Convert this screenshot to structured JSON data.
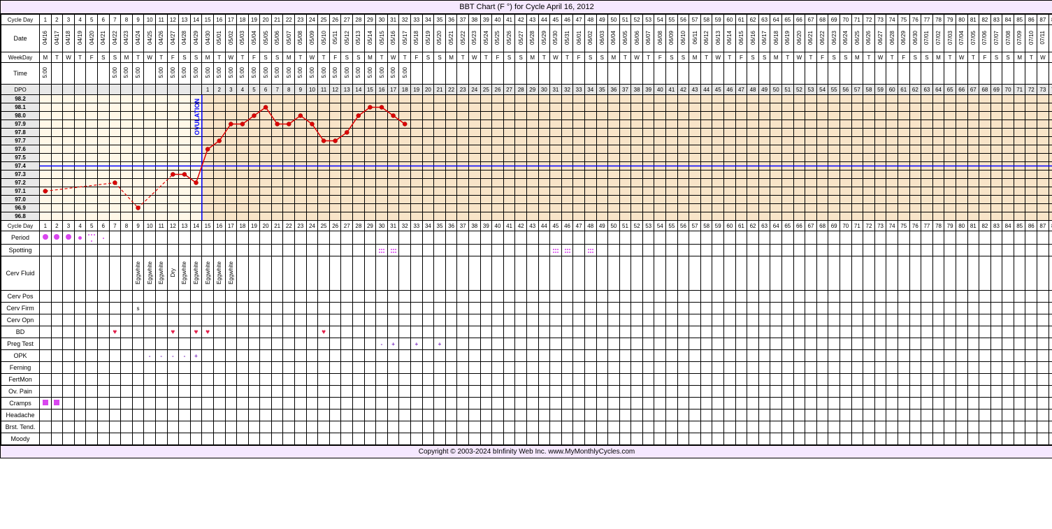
{
  "title": "BBT Chart (F °) for Cycle April 16, 2012",
  "footer": "Copyright © 2003-2024 bInfinity Web Inc.    www.MyMonthlyCycles.com",
  "num_days": 92,
  "label_width": 54,
  "col_width": 15.6,
  "row_labels": {
    "cycle_day": "Cycle Day",
    "date": "Date",
    "weekday": "WeekDay",
    "time": "Time",
    "dpo": "DPO",
    "period": "Period",
    "spotting": "Spotting",
    "cerv_fluid": "Cerv Fluid",
    "cerv_pos": "Cerv Pos",
    "cerv_firm": "Cerv Firm",
    "cerv_opn": "Cerv Opn",
    "bd": "BD",
    "preg_test": "Preg Test",
    "opk": "OPK",
    "ferning": "Ferning",
    "fertmon": "FertMon",
    "ov_pain": "Ov. Pain",
    "cramps": "Cramps",
    "headache": "Headache",
    "brst": "Brst. Tend.",
    "moody": "Moody"
  },
  "dates_start": {
    "month": 4,
    "day": 16,
    "year": 2012
  },
  "weekday_start": 1,
  "weekday_abbr": [
    "S",
    "M",
    "T",
    "W",
    "T",
    "F",
    "S"
  ],
  "times": {
    "1": "5:00",
    "7": "5:00",
    "8": "5:00",
    "9": "5:00",
    "11": "5:00",
    "12": "5:00",
    "13": "5:00",
    "14": "5:00",
    "15": "5:00",
    "16": "5:00",
    "17": "5:00",
    "18": "5:00",
    "19": "5:00",
    "20": "5:00",
    "21": "5:00",
    "22": "5:00",
    "23": "5:00",
    "24": "5:00",
    "25": "5:00",
    "26": "5:00",
    "27": "5:00",
    "28": "5:00",
    "29": "5:00",
    "30": "5:00",
    "31": "5:00",
    "32": "5:00"
  },
  "dpo_start_cd": 15,
  "ovulation_cd": 14,
  "temp_axis": {
    "min": 96.8,
    "max": 98.2,
    "step": 0.1
  },
  "coverline": 97.4,
  "luteal_start_cd": 15,
  "decay_end_cd": 14,
  "temps_solid": {
    "7": 97.2,
    "9": 96.9,
    "12": 97.3,
    "13": 97.3,
    "14": 97.2,
    "15": 97.6,
    "16": 97.7,
    "17": 97.9,
    "18": 97.9,
    "19": 98.0,
    "20": 98.1,
    "21": 97.9,
    "22": 97.9,
    "23": 98.0,
    "24": 97.9,
    "25": 97.7,
    "26": 97.7,
    "27": 97.8,
    "28": 98.0,
    "29": 98.1,
    "30": 98.1,
    "31": 98.0,
    "32": 97.9
  },
  "temps_dashed": [
    [
      1,
      97.1
    ],
    [
      7,
      97.2
    ],
    [
      9,
      96.9
    ],
    [
      12,
      97.3
    ]
  ],
  "period": {
    "1": "heavy",
    "2": "heavy",
    "3": "heavy",
    "4": "light",
    "5": "spot",
    "6": "vspot"
  },
  "spotting": [
    30,
    31,
    45,
    46,
    48
  ],
  "cerv_fluid": {
    "9": "Eggwhite",
    "10": "Eggwhite",
    "11": "Eggwhite",
    "12": "Dry",
    "13": "Eggwhite",
    "14": "Eggwhite",
    "15": "Eggwhite",
    "16": "Eggwhite",
    "17": "Eggwhite"
  },
  "cerv_firm": {
    "9": "s"
  },
  "bd": [
    7,
    12,
    14,
    15,
    25
  ],
  "preg_test": {
    "30": "-",
    "31": "+",
    "33": "+",
    "35": "+"
  },
  "opk": {
    "10": "-",
    "11": "-",
    "12": "-",
    "13": "-",
    "14": "+"
  },
  "cramps": [
    1,
    2
  ],
  "colors": {
    "bg_title": "#f5e8ff",
    "decay": "#fff8e8",
    "luteal": "#f8e4c8",
    "line": "#d00",
    "point": "#d00",
    "coverline": "#0000ff",
    "ovline": "#0000ff",
    "magenta": "#d946ef",
    "purple": "#7b2cbf"
  }
}
